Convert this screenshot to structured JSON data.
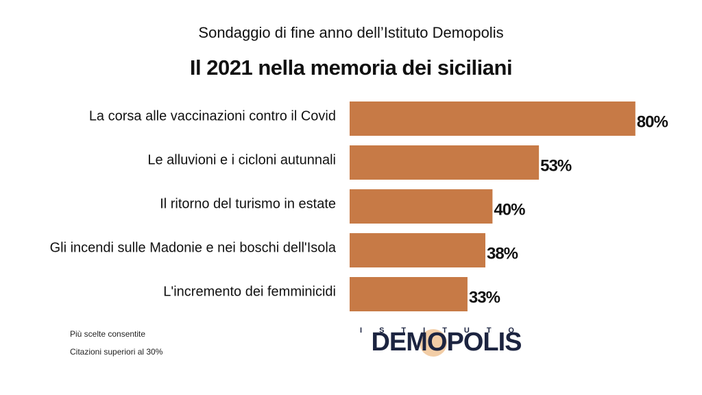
{
  "chart_data": {
    "type": "bar",
    "orientation": "horizontal",
    "subtitle": "Sondaggio di fine anno dell’Istituto Demopolis",
    "title": "Il 2021 nella memoria dei siciliani",
    "categories": [
      "La corsa alle vaccinazioni contro il Covid",
      "Le alluvioni e i cicloni autunnali",
      "Il ritorno del turismo in estate",
      "Gli incendi sulle Madonie e nei boschi dell'Isola",
      "L'incremento dei femminicidi"
    ],
    "values": [
      80,
      53,
      40,
      38,
      33
    ],
    "value_labels": [
      "80%",
      "53%",
      "40%",
      "38%",
      "33%"
    ],
    "color": "#c77a46",
    "notes": [
      "Più scelte consentite",
      "Citazioni superiori al 30%"
    ],
    "logo": {
      "top": "ISTITUTO",
      "name": "DEMOPOLIS"
    }
  }
}
